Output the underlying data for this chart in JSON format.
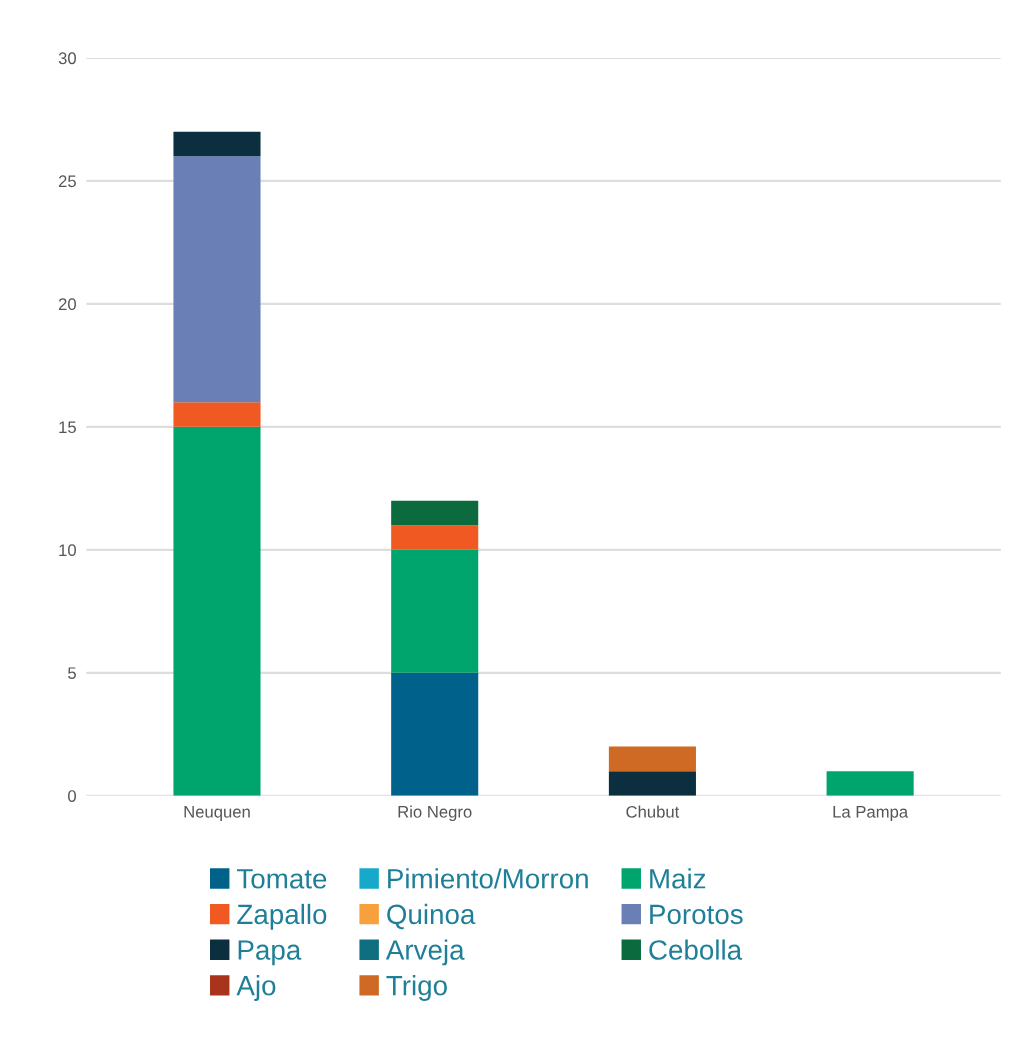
{
  "chart_data": {
    "type": "bar",
    "stacked": true,
    "categories": [
      "Neuquen",
      "Rio Negro",
      "Chubut",
      "La Pampa"
    ],
    "series": [
      {
        "name": "Tomate",
        "color": "#00628a",
        "values": [
          0,
          5,
          0,
          0
        ]
      },
      {
        "name": "Pimiento/Morron",
        "color": "#17a9c9",
        "values": [
          0,
          0,
          0,
          0
        ]
      },
      {
        "name": "Maiz",
        "color": "#00a56e",
        "values": [
          15,
          5,
          0,
          1
        ]
      },
      {
        "name": "Zapallo",
        "color": "#f05a22",
        "values": [
          1,
          1,
          0,
          0
        ]
      },
      {
        "name": "Quinoa",
        "color": "#f7a03c",
        "values": [
          0,
          0,
          0,
          0
        ]
      },
      {
        "name": "Porotos",
        "color": "#6a7fb5",
        "values": [
          10,
          0,
          0,
          0
        ]
      },
      {
        "name": "Papa",
        "color": "#0b2f3e",
        "values": [
          1,
          0,
          1,
          0
        ]
      },
      {
        "name": "Arveja",
        "color": "#0f6e80",
        "values": [
          0,
          0,
          0,
          0
        ]
      },
      {
        "name": "Cebolla",
        "color": "#0b6b3e",
        "values": [
          0,
          1,
          0,
          0
        ]
      },
      {
        "name": "Ajo",
        "color": "#a8341c",
        "values": [
          0,
          0,
          0,
          0
        ]
      },
      {
        "name": "Trigo",
        "color": "#cf6a25",
        "values": [
          0,
          0,
          1,
          0
        ]
      }
    ],
    "ylim": [
      0,
      30
    ],
    "yticks": [
      0,
      5,
      10,
      15,
      20,
      25,
      30
    ],
    "grid": "y",
    "legend": "bottom"
  }
}
